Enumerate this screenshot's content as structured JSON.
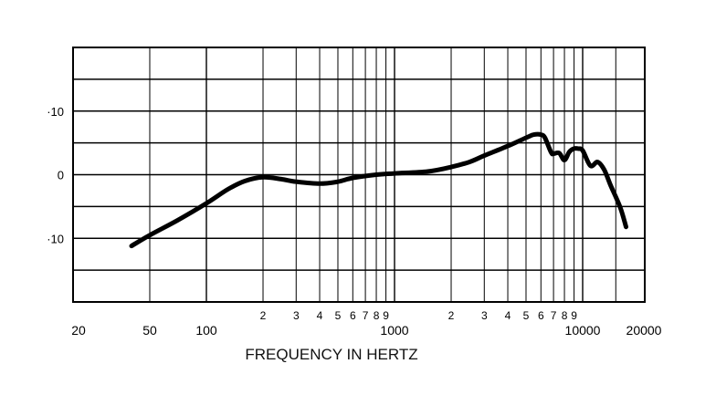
{
  "chart_data": {
    "type": "line",
    "title": "",
    "xlabel": "FREQUENCY IN HERTZ",
    "ylabel": "",
    "x_scale": "log",
    "xlim": [
      20,
      20000
    ],
    "ylim": [
      -20,
      20
    ],
    "grid": true,
    "y_tick_labels": [
      {
        "value": 10,
        "label": "·10"
      },
      {
        "value": 0,
        "label": "0"
      },
      {
        "value": -10,
        "label": "·10"
      }
    ],
    "x_major_labels": [
      {
        "value": 20,
        "label": "20"
      },
      {
        "value": 50,
        "label": "50"
      },
      {
        "value": 100,
        "label": "100"
      },
      {
        "value": 1000,
        "label": "1000"
      },
      {
        "value": 10000,
        "label": "10000"
      },
      {
        "value": 20000,
        "label": "20000"
      }
    ],
    "x_minor_labels": [
      {
        "value": 200,
        "label": "2"
      },
      {
        "value": 300,
        "label": "3"
      },
      {
        "value": 400,
        "label": "4"
      },
      {
        "value": 500,
        "label": "5"
      },
      {
        "value": 600,
        "label": "6"
      },
      {
        "value": 700,
        "label": "7"
      },
      {
        "value": 800,
        "label": "8"
      },
      {
        "value": 900,
        "label": "9"
      },
      {
        "value": 2000,
        "label": "2"
      },
      {
        "value": 3000,
        "label": "3"
      },
      {
        "value": 4000,
        "label": "4"
      },
      {
        "value": 5000,
        "label": "5"
      },
      {
        "value": 6000,
        "label": "6"
      },
      {
        "value": 7000,
        "label": "7"
      },
      {
        "value": 8000,
        "label": "8"
      },
      {
        "value": 9000,
        "label": "9"
      }
    ],
    "x_gridlines": [
      50,
      100,
      200,
      300,
      400,
      500,
      600,
      700,
      800,
      900,
      1000,
      2000,
      3000,
      4000,
      5000,
      6000,
      7000,
      8000,
      9000,
      10000,
      15000
    ],
    "y_gridlines": [
      15,
      10,
      5,
      0,
      -5,
      -10,
      -15
    ],
    "series": [
      {
        "color": "#000000",
        "x": [
          40,
          50,
          70,
          100,
          130,
          160,
          200,
          250,
          300,
          400,
          500,
          600,
          800,
          1000,
          1500,
          2000,
          2500,
          3000,
          4000,
          5000,
          5500,
          6000,
          6300,
          6800,
          7000,
          7500,
          8000,
          8500,
          9000,
          9500,
          10000,
          11000,
          12000,
          13000,
          14000,
          15000,
          16000,
          17000
        ],
        "y": [
          -11.2,
          -9.5,
          -7.2,
          -4.5,
          -2.3,
          -1,
          -0.4,
          -0.7,
          -1.1,
          -1.4,
          -1.1,
          -0.5,
          0,
          0.2,
          0.5,
          1.2,
          2,
          3,
          4.5,
          5.8,
          6.3,
          6.3,
          5.8,
          3.5,
          3.3,
          3.4,
          2.3,
          3.6,
          4.1,
          4.1,
          3.8,
          1.4,
          2,
          0.8,
          -1.5,
          -3.5,
          -5.5,
          -8.2
        ]
      }
    ]
  }
}
